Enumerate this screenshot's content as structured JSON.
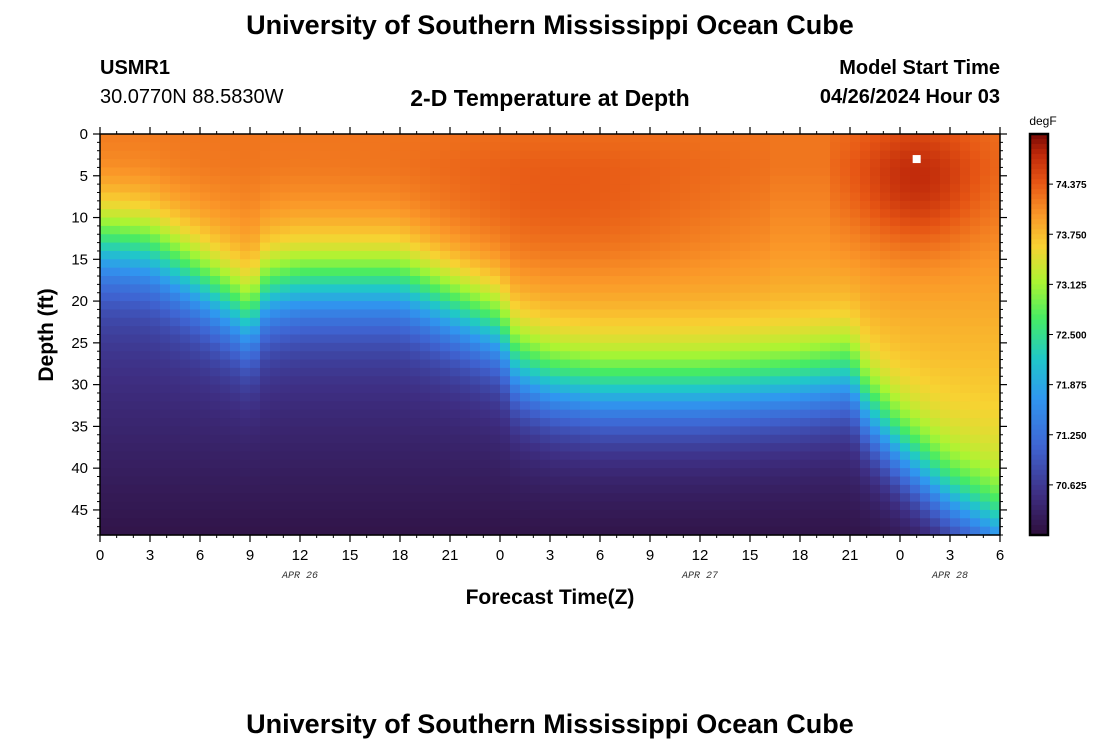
{
  "header": {
    "title_top": "University of Southern Mississippi Ocean Cube",
    "title_bottom": "University of Southern Mississippi Ocean Cube",
    "station": "USMR1",
    "coords": "30.0770N  88.5830W",
    "plot_title": "2-D Temperature at Depth",
    "model_start_label": "Model Start Time",
    "model_start_value": "04/26/2024 Hour 03"
  },
  "chart_data": {
    "type": "heatmap",
    "title": "2-D Temperature at Depth",
    "xlabel": "Forecast Time(Z)",
    "ylabel": "Depth (ft)",
    "x_ticks": [
      "0",
      "3",
      "6",
      "9",
      "12",
      "15",
      "18",
      "21",
      "0",
      "3",
      "6",
      "9",
      "12",
      "15",
      "18",
      "21",
      "0",
      "3",
      "6"
    ],
    "x_range_hours": [
      0,
      54
    ],
    "date_labels": [
      {
        "text": "APR 26",
        "hour": 12
      },
      {
        "text": "APR 27",
        "hour": 36
      },
      {
        "text": "APR 28",
        "hour": 51
      }
    ],
    "y_ticks": [
      "0",
      "5",
      "10",
      "15",
      "20",
      "25",
      "30",
      "35",
      "40",
      "45"
    ],
    "y_range_ft": [
      0,
      48
    ],
    "colorbar": {
      "unit": "degF",
      "min": 70.0,
      "max": 75.0,
      "tick_labels": [
        "74.375",
        "73.750",
        "73.125",
        "72.500",
        "71.875",
        "71.250",
        "70.625"
      ],
      "tick_values": [
        74.375,
        73.75,
        73.125,
        72.5,
        71.875,
        71.25,
        70.625
      ]
    },
    "marker": {
      "hour": 49,
      "depth_ft": 3
    },
    "field_model": {
      "description": "Warm mixed layer over cooler bottom water; thermocline depth (ft) varies with forecast hour",
      "thermocline_depth_ft": {
        "hours": [
          0,
          3,
          6,
          8,
          9,
          10,
          12,
          18,
          24,
          25,
          27,
          30,
          36,
          42,
          45,
          46,
          48,
          51,
          54
        ],
        "depths": [
          13,
          14,
          18,
          21,
          23,
          19,
          18,
          18,
          24,
          28,
          30,
          31,
          31,
          30,
          29,
          33,
          38,
          44,
          48
        ]
      },
      "surface_temp_degF": 74.2,
      "bottom_temp_degF": 70.1
    }
  }
}
